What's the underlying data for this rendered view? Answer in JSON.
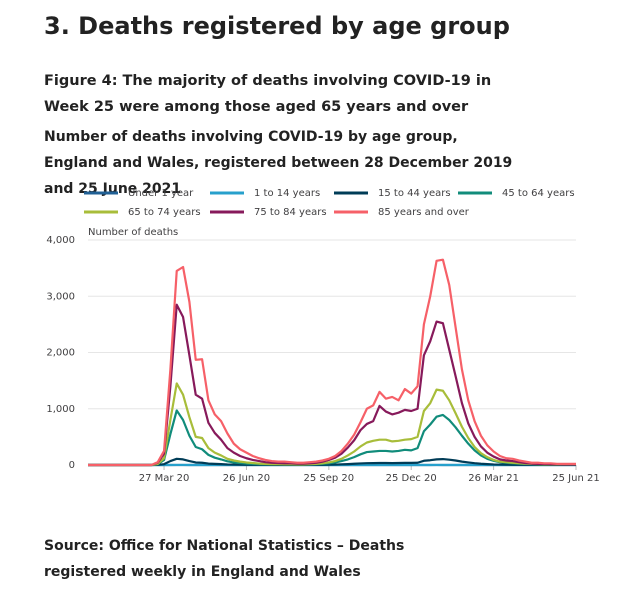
{
  "heading": "3.  Deaths registered by age group",
  "source": "Source: Office for National Statistics – Deaths registered weekly in England and Wales",
  "chart_data": {
    "type": "line",
    "title": "Figure 4: The majority of deaths involving COVID-19 in Week 25 were among those aged 65 years and over",
    "subtitle": "Number of deaths involving COVID-19 by age group, England and Wales, registered between 28 December 2019 and 25 June 2021",
    "y_label": "Number of deaths",
    "categories": [
      null,
      null,
      null,
      null,
      null,
      null,
      null,
      null,
      null,
      null,
      null,
      null,
      "27 Mar 20",
      null,
      null,
      null,
      null,
      null,
      null,
      null,
      null,
      null,
      null,
      null,
      null,
      "26 Jun 20",
      null,
      null,
      null,
      null,
      null,
      null,
      null,
      null,
      null,
      null,
      null,
      null,
      "25 Sep 20",
      null,
      null,
      null,
      null,
      null,
      null,
      null,
      null,
      null,
      null,
      null,
      null,
      "25 Dec 20",
      null,
      null,
      null,
      null,
      null,
      null,
      null,
      null,
      null,
      null,
      null,
      null,
      "26 Mar 21",
      null,
      null,
      null,
      null,
      null,
      null,
      null,
      null,
      null,
      null,
      null,
      null,
      "25 Jun 21"
    ],
    "ylim": [
      0,
      4000
    ],
    "yticks": [
      0,
      {
        "value": 1000,
        "label": "1,000"
      },
      {
        "value": 2000,
        "label": "2,000"
      },
      {
        "value": 3000,
        "label": "3,000"
      },
      {
        "value": 4000,
        "label": "4,000"
      }
    ],
    "grid": true,
    "series": [
      {
        "name": "Under 1 year",
        "color": "#206095",
        "values": [
          0,
          0,
          0,
          0,
          0,
          0,
          0,
          0,
          0,
          0,
          0,
          0,
          0,
          0,
          0,
          0,
          0,
          0,
          0,
          0,
          0,
          0,
          0,
          0,
          0,
          0,
          0,
          0,
          0,
          0,
          0,
          0,
          0,
          0,
          0,
          0,
          0,
          0,
          0,
          0,
          0,
          0,
          0,
          0,
          0,
          0,
          0,
          0,
          0,
          0,
          0,
          0,
          0,
          0,
          0,
          0,
          0,
          0,
          0,
          0,
          0,
          0,
          0,
          0,
          0,
          0,
          0,
          0,
          0,
          0,
          0,
          0,
          0,
          0,
          0,
          0,
          0,
          0
        ]
      },
      {
        "name": "1 to 14 years",
        "color": "#27a0cc",
        "values": [
          0,
          0,
          0,
          0,
          0,
          0,
          0,
          0,
          0,
          0,
          0,
          0,
          0,
          0,
          1,
          1,
          0,
          0,
          0,
          0,
          0,
          0,
          0,
          0,
          0,
          0,
          0,
          0,
          0,
          0,
          0,
          0,
          0,
          0,
          0,
          0,
          0,
          0,
          0,
          0,
          0,
          0,
          0,
          0,
          0,
          0,
          0,
          0,
          0,
          0,
          0,
          0,
          0,
          0,
          0,
          1,
          0,
          0,
          0,
          0,
          0,
          0,
          0,
          0,
          0,
          0,
          0,
          0,
          0,
          0,
          0,
          0,
          0,
          0,
          0,
          0,
          0,
          0
        ]
      },
      {
        "name": "15 to 44 years",
        "color": "#003c57",
        "values": [
          0,
          0,
          0,
          0,
          0,
          0,
          0,
          0,
          0,
          0,
          0,
          3,
          15,
          70,
          110,
          100,
          70,
          45,
          40,
          25,
          20,
          15,
          10,
          8,
          6,
          5,
          4,
          3,
          3,
          2,
          2,
          2,
          2,
          2,
          2,
          3,
          3,
          4,
          6,
          8,
          12,
          16,
          22,
          28,
          32,
          34,
          35,
          35,
          34,
          35,
          38,
          38,
          40,
          75,
          85,
          100,
          105,
          95,
          80,
          60,
          45,
          32,
          22,
          15,
          10,
          8,
          6,
          5,
          4,
          3,
          3,
          2,
          2,
          2,
          2,
          2,
          2,
          2
        ]
      },
      {
        "name": "45 to 64 years",
        "color": "#118c7b",
        "values": [
          0,
          0,
          0,
          0,
          0,
          0,
          0,
          0,
          0,
          0,
          0,
          15,
          90,
          550,
          970,
          800,
          520,
          320,
          280,
          180,
          130,
          100,
          65,
          45,
          35,
          25,
          20,
          15,
          12,
          10,
          10,
          8,
          8,
          8,
          8,
          10,
          15,
          20,
          30,
          45,
          70,
          100,
          140,
          190,
          230,
          240,
          250,
          250,
          240,
          250,
          270,
          260,
          300,
          600,
          720,
          860,
          890,
          800,
          670,
          520,
          380,
          260,
          170,
          110,
          75,
          50,
          40,
          30,
          25,
          20,
          15,
          12,
          10,
          8,
          8,
          6,
          6,
          6
        ]
      },
      {
        "name": "65 to 74 years",
        "color": "#a8bd3a",
        "values": [
          0,
          0,
          0,
          0,
          0,
          0,
          0,
          0,
          0,
          0,
          0,
          20,
          120,
          800,
          1450,
          1250,
          850,
          500,
          480,
          300,
          220,
          170,
          110,
          80,
          60,
          45,
          35,
          25,
          20,
          15,
          15,
          12,
          12,
          10,
          10,
          15,
          20,
          30,
          45,
          70,
          110,
          170,
          240,
          330,
          400,
          430,
          450,
          450,
          420,
          430,
          450,
          460,
          500,
          960,
          1100,
          1340,
          1320,
          1150,
          920,
          680,
          480,
          320,
          210,
          140,
          90,
          60,
          50,
          40,
          30,
          25,
          20,
          15,
          12,
          10,
          10,
          8,
          8,
          8
        ]
      },
      {
        "name": "75 to 84 years",
        "color": "#871a5b",
        "values": [
          0,
          0,
          0,
          0,
          0,
          0,
          0,
          0,
          0,
          0,
          0,
          40,
          200,
          1400,
          2850,
          2630,
          1950,
          1250,
          1180,
          750,
          570,
          450,
          300,
          220,
          160,
          120,
          90,
          70,
          50,
          40,
          35,
          30,
          30,
          25,
          25,
          30,
          40,
          60,
          90,
          130,
          200,
          310,
          440,
          620,
          730,
          780,
          1050,
          950,
          900,
          930,
          980,
          960,
          1000,
          1950,
          2200,
          2550,
          2520,
          2050,
          1580,
          1100,
          740,
          500,
          330,
          220,
          150,
          100,
          80,
          70,
          50,
          35,
          25,
          20,
          20,
          15,
          15,
          10,
          10,
          10
        ]
      },
      {
        "name": "85 years and over",
        "color": "#f66068",
        "values": [
          0,
          0,
          0,
          0,
          0,
          0,
          0,
          0,
          0,
          0,
          0,
          50,
          250,
          1700,
          3450,
          3520,
          2900,
          1870,
          1880,
          1150,
          900,
          780,
          560,
          380,
          280,
          220,
          160,
          120,
          90,
          70,
          60,
          60,
          50,
          40,
          40,
          50,
          60,
          80,
          110,
          160,
          250,
          380,
          540,
          760,
          1000,
          1060,
          1300,
          1180,
          1210,
          1150,
          1350,
          1270,
          1400,
          2500,
          3000,
          3630,
          3650,
          3200,
          2450,
          1700,
          1150,
          780,
          520,
          350,
          240,
          160,
          120,
          110,
          80,
          60,
          40,
          40,
          30,
          30,
          20,
          20,
          20,
          20
        ]
      }
    ]
  }
}
